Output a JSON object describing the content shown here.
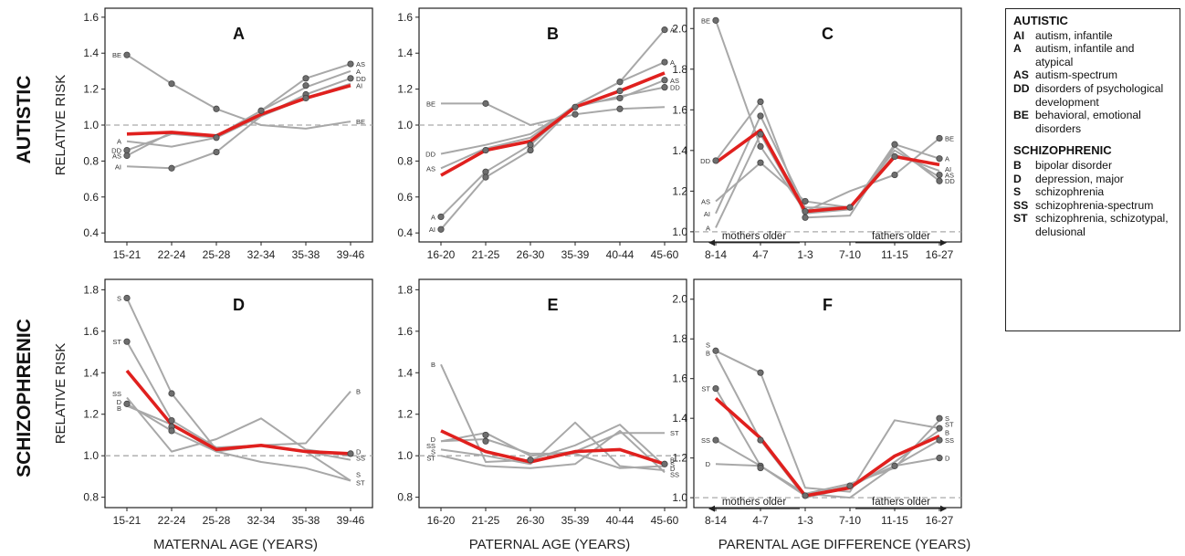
{
  "row_labels": [
    "AUTISTIC",
    "SCHIZOPHRENIC"
  ],
  "x_axis_titles": [
    "MATERNAL AGE (YEARS)",
    "PATERNAL AGE (YEARS)",
    "PARENTAL AGE DIFFERENCE (YEARS)"
  ],
  "y_axis_title": "RELATIVE RISK",
  "arrow_labels": {
    "left": "mothers older",
    "right": "fathers older"
  },
  "legend": {
    "sections": [
      {
        "title": "AUTISTIC",
        "items": [
          {
            "code": "AI",
            "desc": "autism, infantile"
          },
          {
            "code": "A",
            "desc": "autism, infantile and atypical"
          },
          {
            "code": "AS",
            "desc": "autism-spectrum"
          },
          {
            "code": "DD",
            "desc": "disorders of psychological development"
          },
          {
            "code": "BE",
            "desc": "behavioral, emotional disorders"
          }
        ]
      },
      {
        "title": "SCHIZOPHRENIC",
        "items": [
          {
            "code": "B",
            "desc": "bipolar disorder"
          },
          {
            "code": "D",
            "desc": "depression, major"
          },
          {
            "code": "S",
            "desc": "schizophrenia"
          },
          {
            "code": "SS",
            "desc": "schizophrenia-spectrum"
          },
          {
            "code": "ST",
            "desc": "schizophrenia, schizotypal, delusional"
          }
        ]
      }
    ]
  },
  "colors": {
    "series": "#a8a8a8",
    "average": "#e0201e",
    "marker": "#6e6e6e",
    "reference": "#aaaaaa"
  },
  "chart_data": [
    {
      "panel": "A",
      "type": "line",
      "categories": [
        "15-21",
        "22-24",
        "25-28",
        "32-34",
        "35-38",
        "39-46"
      ],
      "ylim": [
        0.35,
        1.65
      ],
      "yticks": [
        0.4,
        0.6,
        0.8,
        1.0,
        1.2,
        1.4,
        1.6
      ],
      "reference": 1.0,
      "series": [
        {
          "name": "BE",
          "values": [
            1.39,
            1.23,
            1.09,
            1.0,
            0.98,
            1.02
          ]
        },
        {
          "name": "AS",
          "values": [
            0.83,
            0.96,
            0.94,
            1.08,
            1.26,
            1.34
          ]
        },
        {
          "name": "A",
          "values": [
            0.91,
            0.88,
            0.93,
            1.08,
            1.21,
            1.3
          ]
        },
        {
          "name": "DD",
          "values": [
            0.86,
            0.95,
            0.93,
            1.05,
            1.17,
            1.26
          ]
        },
        {
          "name": "AI",
          "values": [
            0.77,
            0.76,
            0.85,
            1.05,
            1.15,
            1.23
          ]
        }
      ],
      "average": [
        0.95,
        0.96,
        0.94,
        1.06,
        1.15,
        1.22
      ],
      "markers": [
        [
          0,
          1.39
        ],
        [
          1,
          1.23
        ],
        [
          2,
          1.09
        ],
        [
          0,
          0.86
        ],
        [
          0,
          0.83
        ],
        [
          1,
          0.76
        ],
        [
          2,
          0.85
        ],
        [
          2,
          0.93
        ],
        [
          3,
          1.08
        ],
        [
          4,
          1.26
        ],
        [
          4,
          1.22
        ],
        [
          4,
          1.17
        ],
        [
          4,
          1.15
        ],
        [
          5,
          1.34
        ],
        [
          5,
          1.26
        ]
      ],
      "labels": [
        [
          0,
          1.39,
          "BE"
        ],
        [
          0,
          0.91,
          "A"
        ],
        [
          0,
          0.86,
          "DD"
        ],
        [
          0,
          0.83,
          "AS"
        ],
        [
          0,
          0.77,
          "AI"
        ],
        [
          5,
          1.34,
          "AS"
        ],
        [
          5,
          1.3,
          "A"
        ],
        [
          5,
          1.26,
          "DD"
        ],
        [
          5,
          1.22,
          "AI"
        ],
        [
          5,
          1.02,
          "BE"
        ]
      ]
    },
    {
      "panel": "B",
      "type": "line",
      "categories": [
        "16-20",
        "21-25",
        "26-30",
        "35-39",
        "40-44",
        "45-60"
      ],
      "ylim": [
        0.35,
        1.65
      ],
      "yticks": [
        0.4,
        0.6,
        0.8,
        1.0,
        1.2,
        1.4,
        1.6
      ],
      "reference": 1.0,
      "series": [
        {
          "name": "BE",
          "values": [
            1.12,
            1.12,
            1.0,
            1.06,
            1.09,
            1.1
          ]
        },
        {
          "name": "DD",
          "values": [
            0.84,
            0.89,
            0.95,
            1.1,
            1.16,
            1.21
          ]
        },
        {
          "name": "AS",
          "values": [
            0.76,
            0.87,
            0.93,
            1.11,
            1.15,
            1.25
          ]
        },
        {
          "name": "A",
          "values": [
            0.49,
            0.74,
            0.89,
            1.11,
            1.24,
            1.35
          ]
        },
        {
          "name": "AI",
          "values": [
            0.42,
            0.71,
            0.86,
            1.11,
            1.24,
            1.53
          ]
        }
      ],
      "average": [
        0.72,
        0.86,
        0.91,
        1.1,
        1.19,
        1.29
      ],
      "markers": [
        [
          0,
          0.49
        ],
        [
          0,
          0.42
        ],
        [
          1,
          1.12
        ],
        [
          1,
          0.86
        ],
        [
          1,
          0.74
        ],
        [
          1,
          0.71
        ],
        [
          2,
          0.89
        ],
        [
          2,
          0.86
        ],
        [
          3,
          1.1
        ],
        [
          3,
          1.06
        ],
        [
          4,
          1.24
        ],
        [
          4,
          1.19
        ],
        [
          4,
          1.15
        ],
        [
          4,
          1.09
        ],
        [
          5,
          1.53
        ],
        [
          5,
          1.35
        ],
        [
          5,
          1.25
        ],
        [
          5,
          1.21
        ]
      ],
      "labels": [
        [
          0,
          1.12,
          "BE"
        ],
        [
          0,
          0.84,
          "DD"
        ],
        [
          0,
          0.76,
          "AS"
        ],
        [
          0,
          0.49,
          "A"
        ],
        [
          0,
          0.42,
          "AI"
        ],
        [
          5,
          1.53,
          "AI"
        ],
        [
          5,
          1.35,
          "A"
        ],
        [
          5,
          1.25,
          "AS"
        ],
        [
          5,
          1.21,
          "DD"
        ]
      ]
    },
    {
      "panel": "C",
      "type": "line",
      "categories": [
        "8-14",
        "4-7",
        "1-3",
        "7-10",
        "11-15",
        "16-27"
      ],
      "ylim": [
        0.95,
        2.1
      ],
      "yticks": [
        1.0,
        1.2,
        1.4,
        1.6,
        1.8,
        2.0
      ],
      "reference": 1.0,
      "series": [
        {
          "name": "BE",
          "values": [
            2.04,
            1.42,
            1.1,
            1.2,
            1.28,
            1.46
          ]
        },
        {
          "name": "DD",
          "values": [
            1.35,
            1.64,
            1.07,
            1.08,
            1.42,
            1.25
          ]
        },
        {
          "name": "AS",
          "values": [
            1.15,
            1.34,
            1.15,
            1.12,
            1.4,
            1.27
          ]
        },
        {
          "name": "AI",
          "values": [
            1.09,
            1.57,
            1.12,
            1.12,
            1.38,
            1.3
          ]
        },
        {
          "name": "A",
          "values": [
            1.02,
            1.48,
            1.09,
            1.11,
            1.43,
            1.36
          ]
        }
      ],
      "average": [
        1.34,
        1.5,
        1.1,
        1.12,
        1.37,
        1.33
      ],
      "markers": [
        [
          0,
          2.04
        ],
        [
          0,
          1.35
        ],
        [
          1,
          1.64
        ],
        [
          1,
          1.57
        ],
        [
          1,
          1.48
        ],
        [
          1,
          1.42
        ],
        [
          1,
          1.34
        ],
        [
          2,
          1.15
        ],
        [
          2,
          1.1
        ],
        [
          2,
          1.07
        ],
        [
          3,
          1.12
        ],
        [
          4,
          1.43
        ],
        [
          4,
          1.37
        ],
        [
          4,
          1.28
        ],
        [
          5,
          1.46
        ],
        [
          5,
          1.36
        ],
        [
          5,
          1.28
        ],
        [
          5,
          1.25
        ]
      ],
      "labels": [
        [
          0,
          2.04,
          "BE"
        ],
        [
          0,
          1.35,
          "DD"
        ],
        [
          0,
          1.15,
          "AS"
        ],
        [
          0,
          1.09,
          "AI"
        ],
        [
          0,
          1.02,
          "A"
        ],
        [
          5,
          1.46,
          "BE"
        ],
        [
          5,
          1.36,
          "A"
        ],
        [
          5,
          1.31,
          "AI"
        ],
        [
          5,
          1.28,
          "AS"
        ],
        [
          5,
          1.25,
          "DD"
        ]
      ]
    },
    {
      "panel": "D",
      "type": "line",
      "categories": [
        "15-21",
        "22-24",
        "25-28",
        "32-34",
        "35-38",
        "39-46"
      ],
      "ylim": [
        0.75,
        1.85
      ],
      "yticks": [
        0.8,
        1.0,
        1.2,
        1.4,
        1.6,
        1.8
      ],
      "reference": 1.0,
      "series": [
        {
          "name": "S",
          "values": [
            1.76,
            1.3,
            1.03,
            1.05,
            1.02,
            0.88
          ]
        },
        {
          "name": "ST",
          "values": [
            1.55,
            1.17,
            1.04,
            1.05,
            1.02,
            0.98
          ]
        },
        {
          "name": "SS",
          "values": [
            1.28,
            1.02,
            1.08,
            1.18,
            1.03,
            1.0
          ]
        },
        {
          "name": "D",
          "values": [
            1.25,
            1.12,
            1.02,
            0.97,
            0.94,
            0.88
          ]
        },
        {
          "name": "B",
          "values": [
            1.24,
            1.15,
            1.02,
            1.05,
            1.06,
            1.31
          ]
        }
      ],
      "average": [
        1.41,
        1.15,
        1.03,
        1.05,
        1.02,
        1.01
      ],
      "markers": [
        [
          0,
          1.76
        ],
        [
          0,
          1.55
        ],
        [
          0,
          1.25
        ],
        [
          1,
          1.3
        ],
        [
          1,
          1.17
        ],
        [
          1,
          1.14
        ],
        [
          1,
          1.12
        ],
        [
          5,
          1.01
        ]
      ],
      "labels": [
        [
          0,
          1.76,
          "S"
        ],
        [
          0,
          1.55,
          "ST"
        ],
        [
          0,
          1.3,
          "SS"
        ],
        [
          0,
          1.26,
          "D"
        ],
        [
          0,
          1.23,
          "B"
        ],
        [
          5,
          1.31,
          "B"
        ],
        [
          5,
          1.02,
          "D"
        ],
        [
          5,
          0.99,
          "SS"
        ],
        [
          5,
          0.91,
          "S"
        ],
        [
          5,
          0.87,
          "ST"
        ]
      ]
    },
    {
      "panel": "E",
      "type": "line",
      "categories": [
        "16-20",
        "21-25",
        "26-30",
        "35-39",
        "40-44",
        "45-60"
      ],
      "ylim": [
        0.75,
        1.85
      ],
      "yticks": [
        0.8,
        1.0,
        1.2,
        1.4,
        1.6,
        1.8
      ],
      "reference": 1.0,
      "series": [
        {
          "name": "B",
          "values": [
            1.44,
            0.97,
            0.98,
            1.05,
            1.15,
            0.95
          ]
        },
        {
          "name": "ST",
          "values": [
            1.07,
            1.11,
            1.0,
            1.02,
            1.11,
            1.11
          ]
        },
        {
          "name": "D",
          "values": [
            1.07,
            1.08,
            1.01,
            1.01,
            0.94,
            0.95
          ]
        },
        {
          "name": "SS",
          "values": [
            1.03,
            1.0,
            0.96,
            1.16,
            0.95,
            0.93
          ]
        },
        {
          "name": "S",
          "values": [
            1.0,
            0.95,
            0.94,
            0.96,
            1.12,
            0.92
          ]
        }
      ],
      "average": [
        1.12,
        1.02,
        0.97,
        1.02,
        1.03,
        0.96
      ],
      "markers": [
        [
          1,
          1.1
        ],
        [
          1,
          1.07
        ],
        [
          2,
          0.98
        ],
        [
          5,
          0.96
        ]
      ],
      "labels": [
        [
          0,
          1.44,
          "B"
        ],
        [
          0,
          1.08,
          "D"
        ],
        [
          0,
          1.05,
          "SS"
        ],
        [
          0,
          1.02,
          "S"
        ],
        [
          0,
          0.99,
          "ST"
        ],
        [
          5,
          1.11,
          "ST"
        ],
        [
          5,
          0.98,
          "B"
        ],
        [
          5,
          0.96,
          "S"
        ],
        [
          5,
          0.94,
          "D"
        ],
        [
          5,
          0.91,
          "SS"
        ]
      ]
    },
    {
      "panel": "F",
      "type": "line",
      "categories": [
        "8-14",
        "4-7",
        "1-3",
        "7-10",
        "11-15",
        "16-27"
      ],
      "ylim": [
        0.95,
        2.1
      ],
      "yticks": [
        1.0,
        1.2,
        1.4,
        1.6,
        1.8,
        2.0
      ],
      "reference": 1.0,
      "series": [
        {
          "name": "S",
          "values": [
            1.74,
            1.63,
            1.05,
            1.03,
            1.39,
            1.35
          ]
        },
        {
          "name": "B",
          "values": [
            1.72,
            1.29,
            1.0,
            1.05,
            1.18,
            1.34
          ]
        },
        {
          "name": "ST",
          "values": [
            1.55,
            1.16,
            1.02,
            1.07,
            1.15,
            1.39
          ]
        },
        {
          "name": "SS",
          "values": [
            1.29,
            1.16,
            1.01,
            1.06,
            1.16,
            1.29
          ]
        },
        {
          "name": "D",
          "values": [
            1.17,
            1.16,
            1.02,
            1.0,
            1.16,
            1.2
          ]
        }
      ],
      "average": [
        1.5,
        1.3,
        1.01,
        1.05,
        1.21,
        1.31
      ],
      "markers": [
        [
          0,
          1.74
        ],
        [
          0,
          1.55
        ],
        [
          0,
          1.29
        ],
        [
          1,
          1.63
        ],
        [
          1,
          1.29
        ],
        [
          1,
          1.16
        ],
        [
          1,
          1.15
        ],
        [
          2,
          1.01
        ],
        [
          3,
          1.06
        ],
        [
          4,
          1.16
        ],
        [
          5,
          1.4
        ],
        [
          5,
          1.35
        ],
        [
          5,
          1.29
        ],
        [
          5,
          1.2
        ]
      ],
      "labels": [
        [
          0,
          1.77,
          "S"
        ],
        [
          0,
          1.73,
          "B"
        ],
        [
          0,
          1.55,
          "ST"
        ],
        [
          0,
          1.29,
          "SS"
        ],
        [
          0,
          1.17,
          "D"
        ],
        [
          5,
          1.4,
          "S"
        ],
        [
          5,
          1.37,
          "ST"
        ],
        [
          5,
          1.33,
          "B"
        ],
        [
          5,
          1.29,
          "SS"
        ],
        [
          5,
          1.2,
          "D"
        ]
      ]
    }
  ]
}
